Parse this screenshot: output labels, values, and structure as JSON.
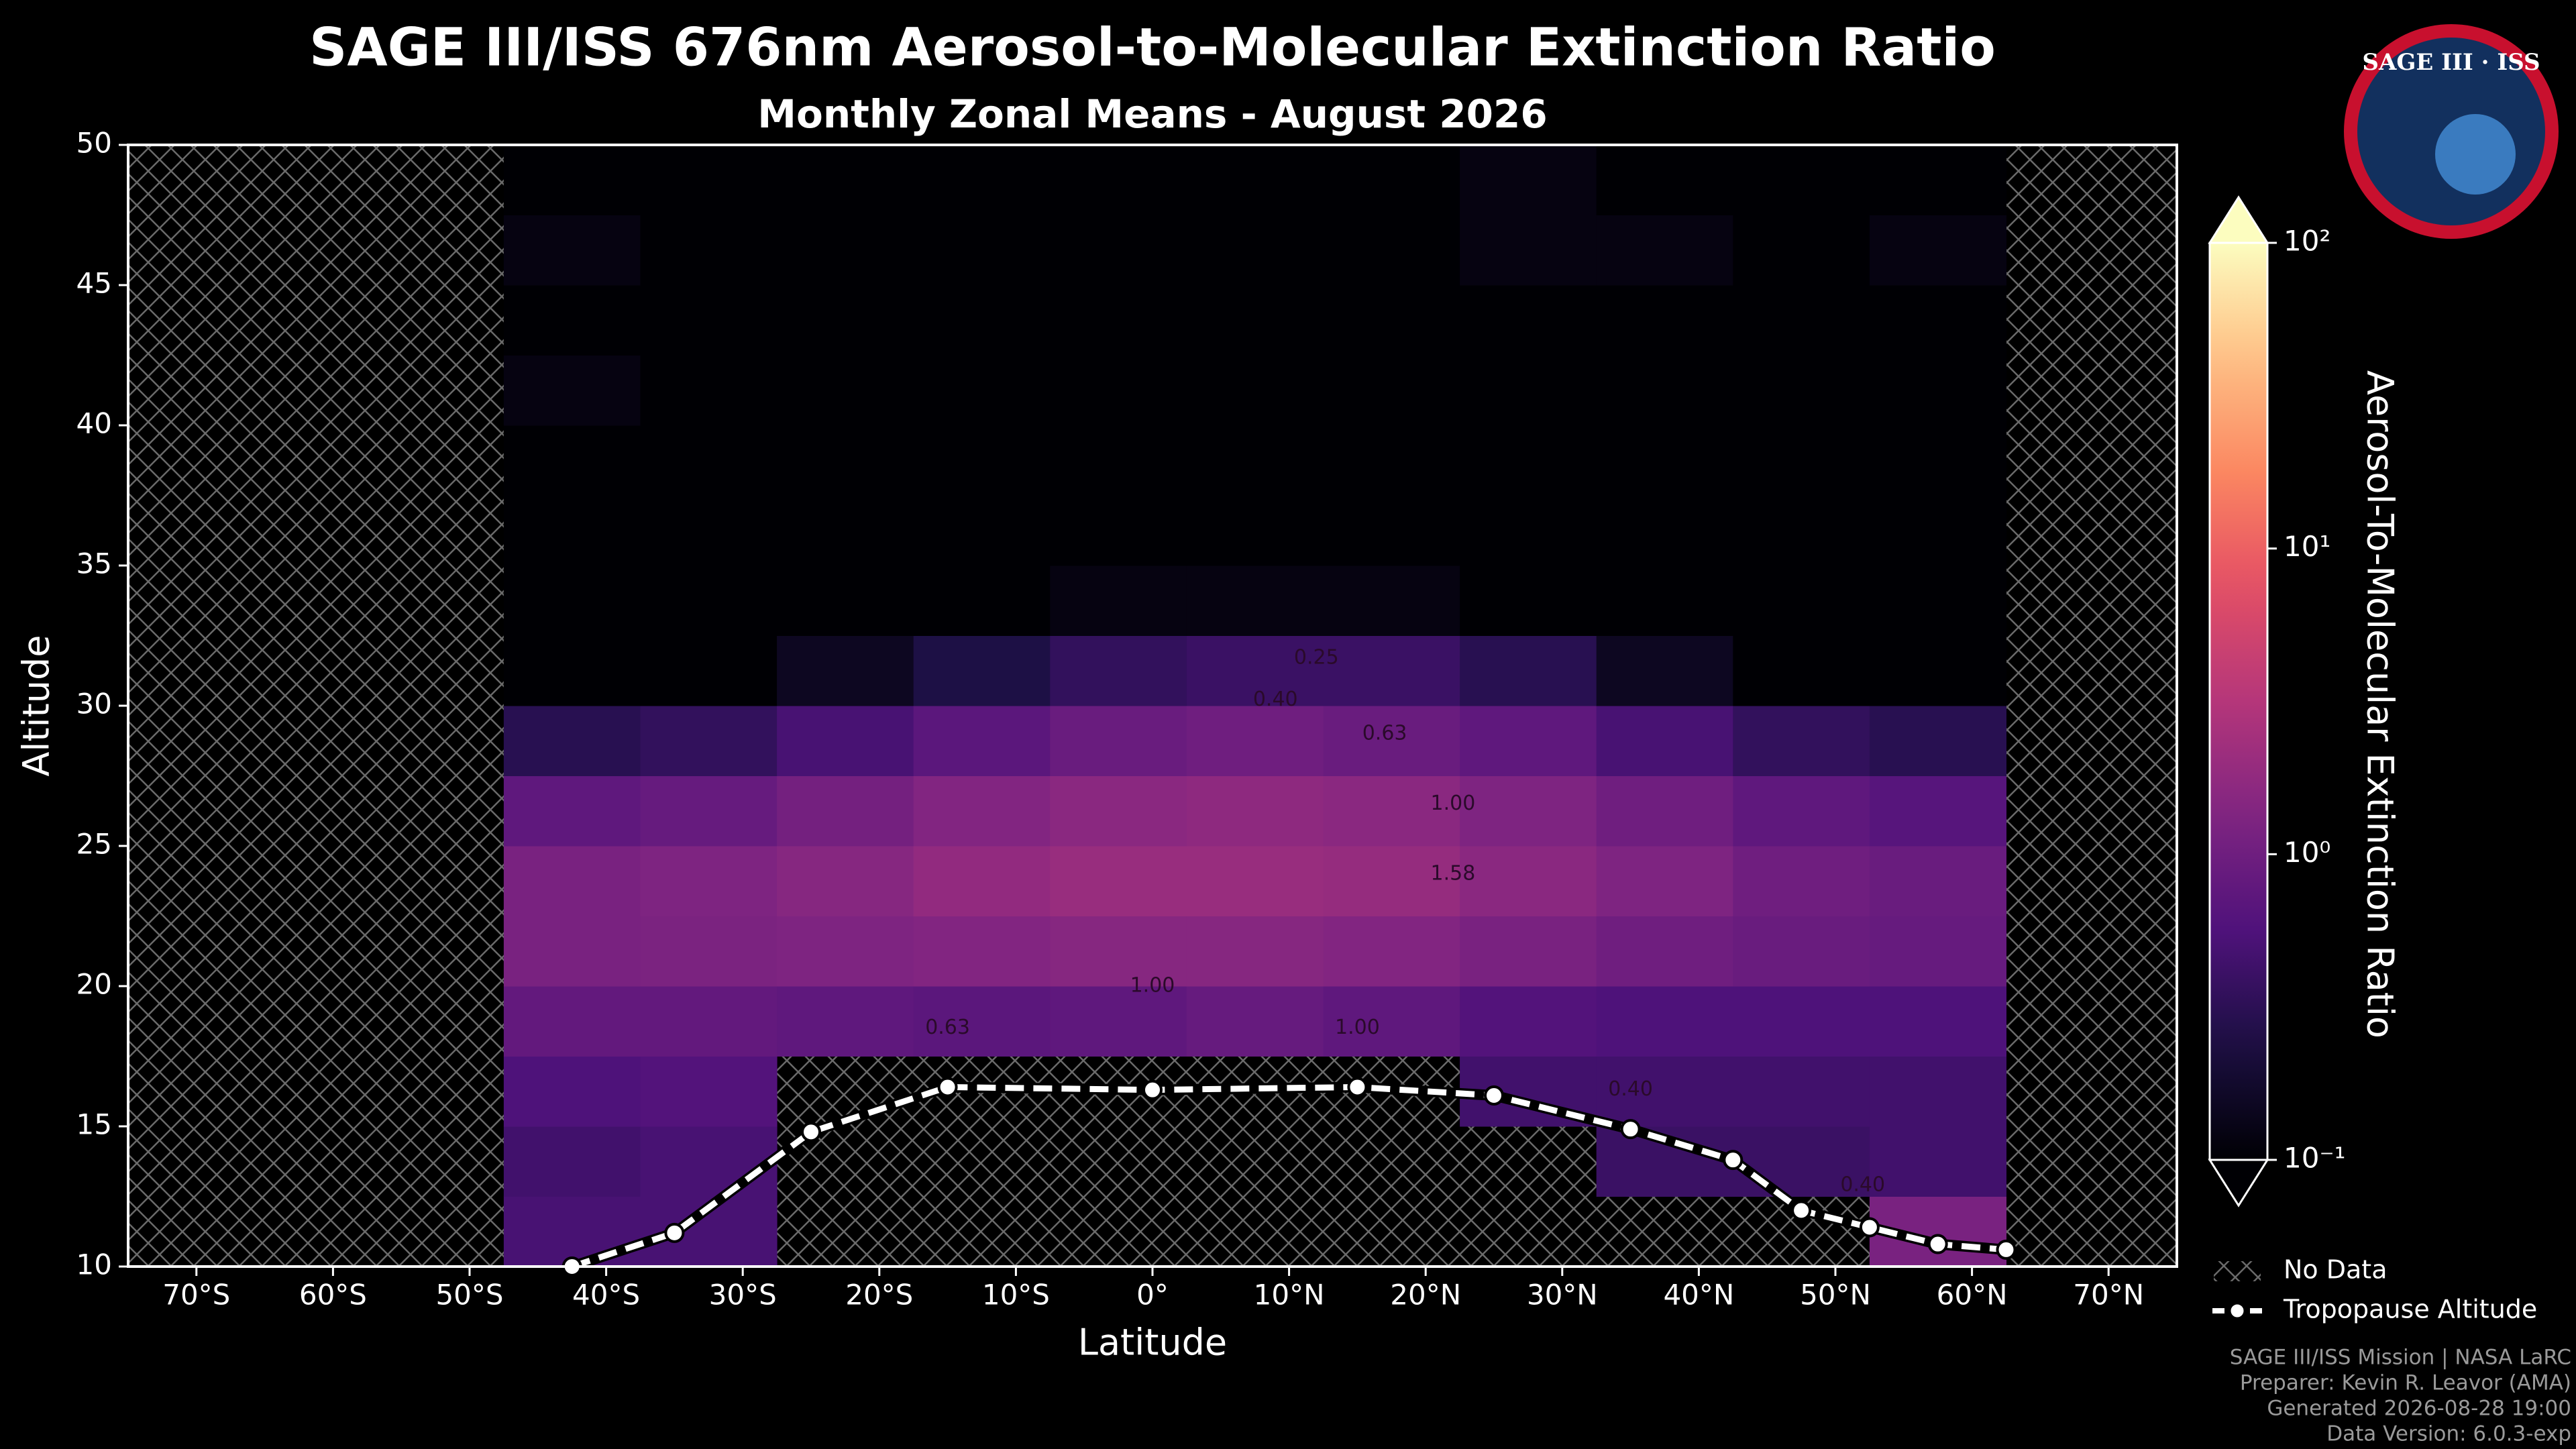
{
  "chart_data": {
    "type": "heatmap",
    "title": "SAGE III/ISS 676nm Aerosol-to-Molecular Extinction Ratio",
    "subtitle": "Monthly Zonal Means - August 2026",
    "x_label": "Latitude",
    "y_label": "Altitude",
    "xlim": [
      -75,
      75
    ],
    "xticks": [
      {
        "value": -70,
        "label": "70°S"
      },
      {
        "value": -60,
        "label": "60°S"
      },
      {
        "value": -50,
        "label": "50°S"
      },
      {
        "value": -40,
        "label": "40°S"
      },
      {
        "value": -30,
        "label": "30°S"
      },
      {
        "value": -20,
        "label": "20°S"
      },
      {
        "value": -10,
        "label": "10°S"
      },
      {
        "value": 0,
        "label": "0°"
      },
      {
        "value": 10,
        "label": "10°N"
      },
      {
        "value": 20,
        "label": "20°N"
      },
      {
        "value": 30,
        "label": "30°N"
      },
      {
        "value": 40,
        "label": "40°N"
      },
      {
        "value": 50,
        "label": "50°N"
      },
      {
        "value": 60,
        "label": "60°N"
      },
      {
        "value": 70,
        "label": "70°N"
      }
    ],
    "ylim": [
      10,
      50
    ],
    "yticks": [
      10,
      15,
      20,
      25,
      30,
      35,
      40,
      45,
      50
    ],
    "lat_edges": [
      -47.5,
      -37.5,
      -27.5,
      -17.5,
      -7.5,
      2.5,
      12.5,
      22.5,
      32.5,
      42.5,
      52.5,
      62.5
    ],
    "alt_edges": [
      10,
      12.5,
      15,
      17.5,
      20,
      22.5,
      25,
      27.5,
      30,
      32.5,
      35,
      37.5,
      40,
      42.5,
      45,
      47.5,
      50
    ],
    "z": [
      [
        0.5,
        0.5,
        null,
        null,
        null,
        null,
        null,
        null,
        null,
        null,
        1.2
      ],
      [
        0.45,
        0.5,
        null,
        null,
        null,
        null,
        null,
        null,
        0.4,
        0.4,
        0.45
      ],
      [
        0.55,
        0.6,
        null,
        null,
        null,
        null,
        null,
        0.45,
        0.45,
        0.45,
        0.45
      ],
      [
        0.8,
        0.8,
        0.75,
        0.7,
        0.75,
        0.85,
        0.75,
        0.6,
        0.55,
        0.55,
        0.55
      ],
      [
        1.2,
        1.25,
        1.3,
        1.4,
        1.5,
        1.5,
        1.4,
        1.2,
        1.0,
        0.9,
        0.85
      ],
      [
        1.2,
        1.3,
        1.5,
        1.8,
        2.0,
        2.0,
        1.9,
        1.6,
        1.3,
        1.0,
        0.9
      ],
      [
        0.75,
        0.85,
        1.1,
        1.4,
        1.6,
        1.7,
        1.6,
        1.3,
        1.0,
        0.75,
        0.65
      ],
      [
        0.3,
        0.35,
        0.5,
        0.7,
        0.9,
        1.0,
        0.9,
        0.75,
        0.5,
        0.35,
        0.3
      ],
      [
        0.1,
        0.1,
        0.15,
        0.25,
        0.35,
        0.4,
        0.4,
        0.3,
        0.15,
        0.1,
        0.1
      ],
      [
        0.1,
        0.1,
        0.1,
        0.1,
        0.12,
        0.12,
        0.12,
        0.1,
        0.1,
        0.1,
        0.1
      ],
      [
        0.1,
        0.1,
        0.1,
        0.1,
        0.1,
        0.1,
        0.1,
        0.1,
        0.1,
        0.1,
        0.1
      ],
      [
        0.1,
        0.1,
        0.1,
        0.1,
        0.1,
        0.1,
        0.1,
        0.1,
        0.1,
        0.1,
        0.1
      ],
      [
        0.12,
        0.1,
        0.1,
        0.1,
        0.1,
        0.1,
        0.1,
        0.1,
        0.1,
        0.1,
        0.1
      ],
      [
        0.1,
        0.1,
        0.1,
        0.1,
        0.1,
        0.1,
        0.1,
        0.1,
        0.1,
        0.1,
        0.1
      ],
      [
        0.12,
        0.1,
        0.1,
        0.1,
        0.1,
        0.1,
        0.1,
        0.12,
        0.12,
        0.1,
        0.12
      ],
      [
        0.1,
        0.1,
        0.1,
        0.1,
        0.1,
        0.1,
        0.1,
        0.12,
        0.1,
        0.1,
        0.1
      ]
    ],
    "colormap": "magma",
    "colorbar": {
      "label": "Aerosol-To-Molecular Extinction Ratio",
      "scale": "log",
      "lim": [
        0.1,
        100
      ],
      "ticks": [
        {
          "value": 0.1,
          "label": "10⁻¹"
        },
        {
          "value": 1,
          "label": "10⁰"
        },
        {
          "value": 10,
          "label": "10¹"
        },
        {
          "value": 100,
          "label": "10²"
        }
      ]
    },
    "annotations": [
      {
        "text": "0.25",
        "x": 12,
        "y": 31.7
      },
      {
        "text": "0.40",
        "x": 9,
        "y": 30.2
      },
      {
        "text": "0.63",
        "x": 17,
        "y": 29.0
      },
      {
        "text": "1.00",
        "x": 22,
        "y": 26.5
      },
      {
        "text": "1.58",
        "x": 22,
        "y": 24.0
      },
      {
        "text": "1.00",
        "x": 0,
        "y": 20.0
      },
      {
        "text": "0.63",
        "x": -15,
        "y": 18.5
      },
      {
        "text": "1.00",
        "x": 15,
        "y": 18.5
      },
      {
        "text": "0.40",
        "x": 35,
        "y": 16.3
      },
      {
        "text": "0.40",
        "x": 52,
        "y": 12.9
      }
    ],
    "series": [
      {
        "name": "Tropopause Altitude",
        "color": "#ffffff",
        "x": [
          -42.5,
          -35,
          -25,
          -15,
          0,
          15,
          25,
          35,
          42.5,
          47.5,
          52.5,
          57.5,
          62.5
        ],
        "values": [
          10.0,
          11.2,
          14.8,
          16.4,
          16.3,
          16.4,
          16.1,
          14.9,
          13.8,
          12.0,
          11.4,
          10.8,
          10.6
        ]
      }
    ],
    "no_data_label": "No Data",
    "logo_text": "SAGE III · ISS",
    "footer": [
      "SAGE III/ISS Mission | NASA LaRC",
      "Preparer: Kevin R. Leavor (AMA)",
      "Generated 2026-08-28 19:00",
      "Data Version: 6.0.3-exp"
    ]
  }
}
